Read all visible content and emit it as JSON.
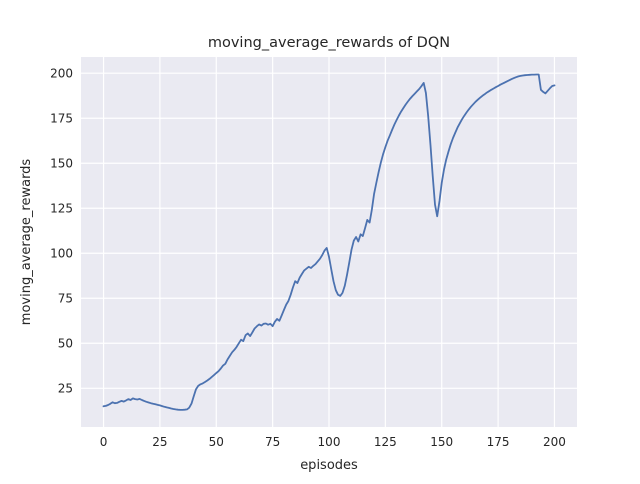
{
  "chart_data": {
    "type": "line",
    "title": "moving_average_rewards of DQN",
    "xlabel": "episodes",
    "ylabel": "moving_average_rewards",
    "xticks": [
      0,
      25,
      50,
      75,
      100,
      125,
      150,
      175,
      200
    ],
    "yticks": [
      25,
      50,
      75,
      100,
      125,
      150,
      175,
      200
    ],
    "xlim": [
      -10,
      210
    ],
    "ylim": [
      3.5,
      209
    ],
    "grid": true,
    "legend": null,
    "style": "seaborn-darkgrid",
    "colors": {
      "line": "#4c72b0",
      "plot_bg": "#eaeaf2",
      "grid": "#ffffff",
      "figure_bg": "#ffffff",
      "text": "#262626"
    },
    "x": [
      0,
      1,
      2,
      3,
      4,
      5,
      6,
      7,
      8,
      9,
      10,
      11,
      12,
      13,
      14,
      15,
      16,
      17,
      18,
      19,
      20,
      21,
      22,
      23,
      24,
      25,
      26,
      27,
      28,
      29,
      30,
      31,
      32,
      33,
      34,
      35,
      36,
      37,
      38,
      39,
      40,
      41,
      42,
      43,
      44,
      45,
      46,
      47,
      48,
      49,
      50,
      51,
      52,
      53,
      54,
      55,
      56,
      57,
      58,
      59,
      60,
      61,
      62,
      63,
      64,
      65,
      66,
      67,
      68,
      69,
      70,
      71,
      72,
      73,
      74,
      75,
      76,
      77,
      78,
      79,
      80,
      81,
      82,
      83,
      84,
      85,
      86,
      87,
      88,
      89,
      90,
      91,
      92,
      93,
      94,
      95,
      96,
      97,
      98,
      99,
      100,
      101,
      102,
      103,
      104,
      105,
      106,
      107,
      108,
      109,
      110,
      111,
      112,
      113,
      114,
      115,
      116,
      117,
      118,
      119,
      120,
      121,
      122,
      123,
      124,
      125,
      126,
      127,
      128,
      129,
      130,
      131,
      132,
      133,
      134,
      135,
      136,
      137,
      138,
      139,
      140,
      141,
      142,
      143,
      144,
      145,
      146,
      147,
      148,
      149,
      150,
      151,
      152,
      153,
      154,
      155,
      156,
      157,
      158,
      159,
      160,
      161,
      162,
      163,
      164,
      165,
      166,
      167,
      168,
      169,
      170,
      171,
      172,
      173,
      174,
      175,
      176,
      177,
      178,
      179,
      180,
      181,
      182,
      183,
      184,
      185,
      186,
      187,
      188,
      189,
      190,
      191,
      192,
      193,
      194,
      195,
      196,
      197,
      198,
      199,
      200
    ],
    "y": [
      15.0,
      15.2,
      15.7,
      16.4,
      17.2,
      16.7,
      16.9,
      17.5,
      18.0,
      17.6,
      18.3,
      19.0,
      18.5,
      19.4,
      19.0,
      18.8,
      19.1,
      18.5,
      18.0,
      17.5,
      17.1,
      16.7,
      16.4,
      16.1,
      15.8,
      15.5,
      15.1,
      14.7,
      14.4,
      14.1,
      13.8,
      13.5,
      13.3,
      13.1,
      13.0,
      13.0,
      13.1,
      13.3,
      14.2,
      16.5,
      20.5,
      24.5,
      26.3,
      27.2,
      27.7,
      28.5,
      29.3,
      30.2,
      31.3,
      32.3,
      33.5,
      34.5,
      36.0,
      37.6,
      38.6,
      41.0,
      43.0,
      45.0,
      46.3,
      48.0,
      50.0,
      52.0,
      51.2,
      54.5,
      55.5,
      54.0,
      56.0,
      58.2,
      59.5,
      60.5,
      59.8,
      60.8,
      61.0,
      60.3,
      60.8,
      59.5,
      62.0,
      63.5,
      62.5,
      65.5,
      68.5,
      71.5,
      73.5,
      77.0,
      81.0,
      84.5,
      83.5,
      86.5,
      88.5,
      90.5,
      91.5,
      92.5,
      91.8,
      93.0,
      94.0,
      95.5,
      97.0,
      99.0,
      101.5,
      103.0,
      98.0,
      91.0,
      84.5,
      79.5,
      77.0,
      76.3,
      78.0,
      82.0,
      88.0,
      95.0,
      102.0,
      107.0,
      109.0,
      106.5,
      110.5,
      109.5,
      114.0,
      118.5,
      117.0,
      124.0,
      133.0,
      139.0,
      145.0,
      150.5,
      155.0,
      159.0,
      162.5,
      165.5,
      168.5,
      171.5,
      174.0,
      176.5,
      178.7,
      180.7,
      182.6,
      184.3,
      185.9,
      187.3,
      188.6,
      189.9,
      191.2,
      192.8,
      194.6,
      189.0,
      176.0,
      160.0,
      143.0,
      127.0,
      120.5,
      129.0,
      139.0,
      146.5,
      152.0,
      156.5,
      160.5,
      164.0,
      167.0,
      169.8,
      172.2,
      174.4,
      176.4,
      178.2,
      179.9,
      181.4,
      182.8,
      184.1,
      185.3,
      186.4,
      187.4,
      188.3,
      189.2,
      190.0,
      190.8,
      191.5,
      192.2,
      192.9,
      193.6,
      194.2,
      194.9,
      195.5,
      196.1,
      196.7,
      197.3,
      197.8,
      198.2,
      198.5,
      198.7,
      198.9,
      199.0,
      199.1,
      199.2,
      199.2,
      199.3,
      199.3,
      190.8,
      189.6,
      188.8,
      190.2,
      191.6,
      192.9,
      193.2
    ]
  }
}
